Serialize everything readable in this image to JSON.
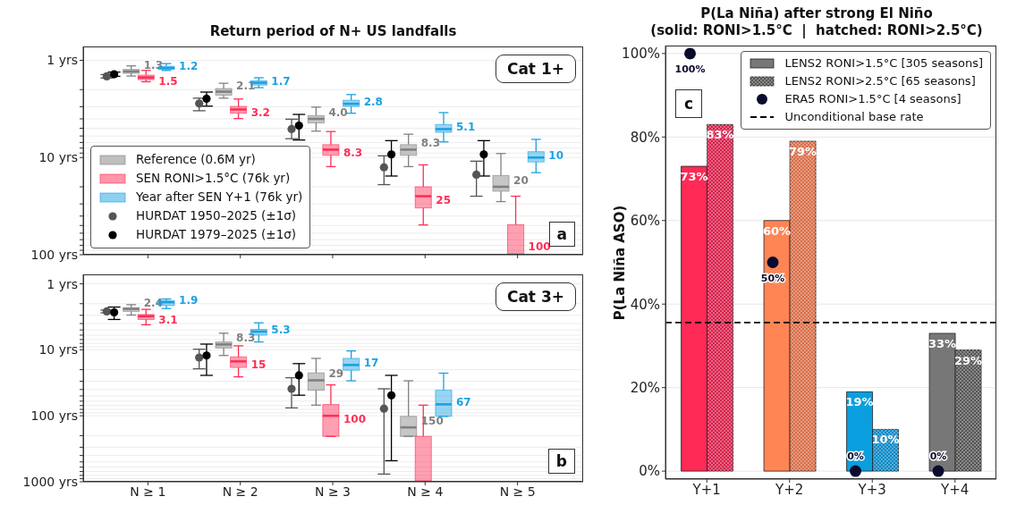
{
  "chart_data": [
    {
      "type": "box",
      "title": "Return period of N+ US landfalls",
      "categories": [
        "N ≥ 1",
        "N ≥ 2",
        "N ≥ 3",
        "N ≥ 4",
        "N ≥ 5"
      ],
      "log": "y",
      "ylim": [
        100,
        0.72
      ],
      "yticks": [
        {
          "value": 1,
          "label": "1 yrs"
        },
        {
          "value": 2,
          "label": null
        },
        {
          "value": 3,
          "label": null
        },
        {
          "value": 4,
          "label": null
        },
        {
          "value": 5,
          "label": null
        },
        {
          "value": 6,
          "label": null
        },
        {
          "value": 7,
          "label": null
        },
        {
          "value": 8,
          "label": null
        },
        {
          "value": 9,
          "label": null
        },
        {
          "value": 10,
          "label": "10 yrs"
        },
        {
          "value": 20,
          "label": null
        },
        {
          "value": 30,
          "label": null
        },
        {
          "value": 40,
          "label": null
        },
        {
          "value": 50,
          "label": null
        },
        {
          "value": 60,
          "label": null
        },
        {
          "value": 70,
          "label": null
        },
        {
          "value": 80,
          "label": null
        },
        {
          "value": 90,
          "label": null
        },
        {
          "value": 100,
          "label": "100 yrs"
        }
      ],
      "grid": "y",
      "legend": "bottom left",
      "tick_labels": "y",
      "annotations": [
        "Cat 1+",
        "a"
      ],
      "series": [
        {
          "name": "Reference (0.6M yr)",
          "type": "box",
          "color": "#808080",
          "boxes": [
            {
              "low": 1.14,
              "q1": 1.24,
              "median": 1.3,
              "q3": 1.36,
              "high": 1.45
            },
            {
              "low": 1.72,
              "q1": 1.95,
              "median": 2.1,
              "q3": 2.28,
              "high": 2.45
            },
            {
              "low": 3.03,
              "q1": 3.7,
              "median": 4.0,
              "q3": 4.4,
              "high": 5.35
            },
            {
              "low": 5.75,
              "q1": 7.37,
              "median": 8.3,
              "q3": 9.5,
              "high": 12.4
            },
            {
              "low": 9.1,
              "q1": 15.3,
              "median": 20,
              "q3": 22.2,
              "high": 28.4
            }
          ],
          "value_labels": [
            "1.3",
            "2.1",
            "4.0",
            "8.3",
            "20"
          ]
        },
        {
          "name": "SEN RONI>1.5°C (76k yr)",
          "type": "box",
          "color": "#ff2d55",
          "boxes": [
            {
              "low": 1.27,
              "q1": 1.42,
              "median": 1.5,
              "q3": 1.58,
              "high": 1.66
            },
            {
              "low": 2.5,
              "q1": 2.98,
              "median": 3.2,
              "q3": 3.5,
              "high": 3.97
            },
            {
              "low": 5.4,
              "q1": 7.37,
              "median": 8.3,
              "q3": 9.5,
              "high": 12.4
            },
            {
              "low": 11.9,
              "q1": 20,
              "median": 25,
              "q3": 33,
              "high": 49.4
            },
            {
              "low": 25,
              "q1": 49,
              "median": 100,
              "q3": 100,
              "high": 100
            }
          ],
          "value_labels": [
            "1.5",
            "3.2",
            "8.3",
            "25",
            "100"
          ]
        },
        {
          "name": "Year after SEN Y+1 (76k yr)",
          "type": "box",
          "color": "#1ba1e2",
          "boxes": [
            {
              "low": 1.08,
              "q1": 1.15,
              "median": 1.2,
              "q3": 1.24,
              "high": 1.27
            },
            {
              "low": 1.51,
              "q1": 1.62,
              "median": 1.7,
              "q3": 1.8,
              "high": 1.91
            },
            {
              "low": 2.25,
              "q1": 2.57,
              "median": 2.8,
              "q3": 2.98,
              "high": 3.5
            },
            {
              "low": 3.45,
              "q1": 4.57,
              "median": 5.1,
              "q3": 5.5,
              "high": 6.9
            },
            {
              "low": 6.5,
              "q1": 8.7,
              "median": 10,
              "q3": 11.1,
              "high": 14.3
            }
          ],
          "value_labels": [
            "1.2",
            "1.7",
            "2.8",
            "5.1",
            "10"
          ]
        },
        {
          "name": "HURDAT 1950–2025 (±1σ)",
          "type": "scatter",
          "color": "#555555",
          "x": [
            "N ≥ 1",
            "N ≥ 2",
            "N ≥ 3",
            "N ≥ 4",
            "N ≥ 5"
          ],
          "values": [
            1.46,
            2.78,
            5.1,
            12.6,
            15
          ],
          "errors": [
            [
              1.4,
              1.52
            ],
            [
              2.45,
              3.3
            ],
            [
              4.03,
              6.4
            ],
            [
              9.6,
              19
            ],
            [
              10.9,
              25
            ]
          ]
        },
        {
          "name": "HURDAT 1979–2025 (±1σ)",
          "type": "scatter",
          "color": "#000000",
          "x": [
            "N ≥ 1",
            "N ≥ 2",
            "N ≥ 3",
            "N ≥ 4",
            "N ≥ 5"
          ],
          "values": [
            1.39,
            2.48,
            4.7,
            9.3,
            9.3
          ],
          "errors": [
            [
              1.32,
              1.46
            ],
            [
              2.12,
              2.96
            ],
            [
              3.6,
              6.6
            ],
            [
              6.7,
              15.5
            ],
            [
              6.7,
              15.5
            ]
          ]
        }
      ]
    },
    {
      "type": "box",
      "categories": [
        "N ≥ 1",
        "N ≥ 2",
        "N ≥ 3",
        "N ≥ 4",
        "N ≥ 5"
      ],
      "log": "y",
      "ylim": [
        1000,
        0.72
      ],
      "yticks": [
        {
          "value": 1,
          "label": "1 yrs"
        },
        {
          "value": 2,
          "label": null
        },
        {
          "value": 3,
          "label": null
        },
        {
          "value": 4,
          "label": null
        },
        {
          "value": 5,
          "label": null
        },
        {
          "value": 6,
          "label": null
        },
        {
          "value": 7,
          "label": null
        },
        {
          "value": 8,
          "label": null
        },
        {
          "value": 9,
          "label": null
        },
        {
          "value": 10,
          "label": "10 yrs"
        },
        {
          "value": 20,
          "label": null
        },
        {
          "value": 30,
          "label": null
        },
        {
          "value": 40,
          "label": null
        },
        {
          "value": 50,
          "label": null
        },
        {
          "value": 60,
          "label": null
        },
        {
          "value": 70,
          "label": null
        },
        {
          "value": 80,
          "label": null
        },
        {
          "value": 90,
          "label": null
        },
        {
          "value": 100,
          "label": "100 yrs"
        },
        {
          "value": 200,
          "label": null
        },
        {
          "value": 300,
          "label": null
        },
        {
          "value": 400,
          "label": null
        },
        {
          "value": 500,
          "label": null
        },
        {
          "value": 600,
          "label": null
        },
        {
          "value": 700,
          "label": null
        },
        {
          "value": 800,
          "label": null
        },
        {
          "value": 900,
          "label": null
        },
        {
          "value": 1000,
          "label": "1000 yrs"
        }
      ],
      "grid": "y",
      "annotations": [
        "Cat 3+",
        "b"
      ],
      "series": [
        {
          "type": "box",
          "color": "#808080",
          "boxes": [
            {
              "low": 2.07,
              "q1": 2.3,
              "median": 2.4,
              "q3": 2.62,
              "high": 2.97
            },
            {
              "low": 5.6,
              "q1": 7.6,
              "median": 8.3,
              "q3": 9.4,
              "high": 12.2
            },
            {
              "low": 13.5,
              "q1": 22.4,
              "median": 29,
              "q3": 41,
              "high": 69
            },
            {
              "low": 29.5,
              "q1": 102,
              "median": 150,
              "q3": 205,
              "high": 205
            },
            null
          ],
          "value_labels": [
            "2.4",
            "8.3",
            "29",
            "150",
            null
          ]
        },
        {
          "type": "box",
          "color": "#ff2d55",
          "boxes": [
            {
              "low": 2.44,
              "q1": 2.92,
              "median": 3.1,
              "q3": 3.47,
              "high": 4.18
            },
            {
              "low": 8.7,
              "q1": 12.8,
              "median": 15,
              "q3": 18.5,
              "high": 25.7
            },
            {
              "low": 34,
              "q1": 67.5,
              "median": 100,
              "q3": 205,
              "high": 205
            },
            {
              "low": 69,
              "q1": 205,
              "median": 1000,
              "q3": 1000,
              "high": 1000
            },
            null
          ],
          "value_labels": [
            "3.1",
            "15",
            "100",
            null,
            null
          ]
        },
        {
          "type": "box",
          "color": "#1ba1e2",
          "boxes": [
            {
              "low": 1.7,
              "q1": 1.8,
              "median": 1.9,
              "q3": 2.14,
              "high": 2.37
            },
            {
              "low": 3.9,
              "q1": 4.9,
              "median": 5.3,
              "q3": 6.0,
              "high": 7.6
            },
            {
              "low": 10.4,
              "q1": 13.5,
              "median": 17,
              "q3": 20.4,
              "high": 29.5
            },
            {
              "low": 22.6,
              "q1": 41,
              "median": 67,
              "q3": 102,
              "high": 102
            },
            null
          ],
          "value_labels": [
            "1.9",
            "5.3",
            "17",
            "67",
            null
          ]
        },
        {
          "type": "scatter",
          "color": "#555555",
          "x": [
            "N ≥ 1",
            "N ≥ 2",
            "N ≥ 3",
            "N ≥ 4",
            "N ≥ 5"
          ],
          "values": [
            2.62,
            13.1,
            39,
            78,
            null
          ],
          "errors": [
            [
              2.5,
              2.75
            ],
            [
              9.8,
              19.4
            ],
            [
              26.5,
              76
            ],
            [
              39,
              765
            ],
            null
          ]
        },
        {
          "type": "scatter",
          "color": "#000000",
          "x": [
            "N ≥ 1",
            "N ≥ 2",
            "N ≥ 3",
            "N ≥ 4",
            "N ≥ 5"
          ],
          "values": [
            2.71,
            12.2,
            24.4,
            49,
            null
          ],
          "errors": [
            [
              2.25,
              3.47
            ],
            [
              8.2,
              24.4
            ],
            [
              16.2,
              48.8
            ],
            [
              24.4,
              480
            ],
            null
          ]
        }
      ]
    },
    {
      "type": "bar",
      "title": "P(La Niña) after strong El Niño",
      "subtitle": "(solid: RONI>1.5°C  |  hatched: RONI>2.5°C)",
      "ylabel": "P(La Niña ASO)",
      "categories": [
        "Y+1",
        "Y+2",
        "Y+3",
        "Y+4"
      ],
      "ylim": [
        -1.9,
        101.9
      ],
      "yticks": [
        {
          "value": 0,
          "label": "0%"
        },
        {
          "value": 20,
          "label": "20%"
        },
        {
          "value": 40,
          "label": "40%"
        },
        {
          "value": 60,
          "label": "60%"
        },
        {
          "value": 80,
          "label": "80%"
        },
        {
          "value": 100,
          "label": "100%"
        }
      ],
      "grid": "y",
      "legend": "top right",
      "annotations": [
        "c"
      ],
      "ref_lines": [
        {
          "axis": "y",
          "value": 35.6,
          "label": "Unconditional base rate",
          "color": "#000000",
          "line_style": "dashed"
        }
      ],
      "series": [
        {
          "name": "LENS2 RONI>1.5°C [305 seasons]",
          "type": "bar",
          "color": "#777777",
          "colors": [
            "#ff2a55",
            "#ff8555",
            "#0a9fdf",
            "#777777"
          ],
          "values": [
            73,
            60,
            19,
            33
          ],
          "value_labels": [
            "73%",
            "60%",
            "19%",
            "33%"
          ]
        },
        {
          "name": "LENS2 RONI>2.5°C [65 seasons]",
          "type": "bar",
          "color": "#555555",
          "colors": [
            "#d8204a",
            "#d96d48",
            "#0888c6",
            "#555555"
          ],
          "values": [
            83,
            79,
            10,
            29
          ],
          "value_labels": [
            "83%",
            "79%",
            "10%",
            "29%"
          ]
        },
        {
          "name": "ERA5 RONI>1.5°C [4 seasons]",
          "type": "scatter",
          "color": "#0b0b2e",
          "values": [
            100,
            50,
            0,
            0
          ],
          "value_labels": [
            "100%",
            "50%",
            "0%",
            "0%"
          ]
        }
      ]
    }
  ]
}
